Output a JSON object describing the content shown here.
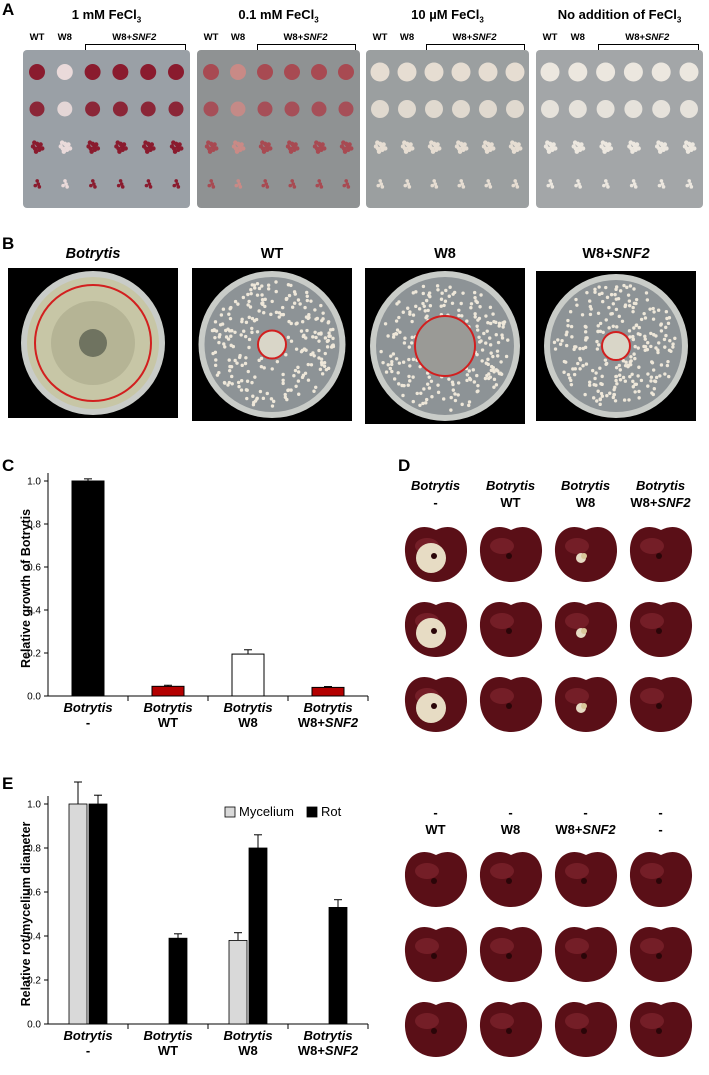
{
  "panel_letters": {
    "a": "A",
    "b": "B",
    "c": "C",
    "d": "D",
    "e": "E"
  },
  "panelA": {
    "plates": [
      {
        "title": "1 mM FeCl",
        "sub": "3",
        "wt": "WT",
        "w8": "W8",
        "w8snf2_prefix": "W8+",
        "w8snf2_gene": "SNF2",
        "bg": "#9aa0a6",
        "colony": "#8a1b2e",
        "pale": "#e9dada"
      },
      {
        "title": "0.1 mM FeCl",
        "sub": "3",
        "wt": "WT",
        "w8": "W8",
        "w8snf2_prefix": "W8+",
        "w8snf2_gene": "SNF2",
        "bg": "#8f9293",
        "colony": "#a84a52",
        "pale": "#c27a7a"
      },
      {
        "title": "10 µM FeCl",
        "sub": "3",
        "wt": "WT",
        "w8": "W8",
        "w8snf2_prefix": "W8+",
        "w8snf2_gene": "SNF2",
        "bg": "#9b9fa0",
        "colony": "#e6ddd2",
        "pale": "#e6ddd2"
      },
      {
        "title": "No addition of FeCl",
        "sub": "3",
        "wt": "WT",
        "w8": "W8",
        "w8snf2_prefix": "W8+",
        "w8snf2_gene": "SNF2",
        "bg": "#a3a6a8",
        "colony": "#ece7df",
        "pale": "#ece7df"
      }
    ]
  },
  "panelB": {
    "titles": [
      {
        "text": "Botrytis",
        "italic": true
      },
      {
        "text": "WT",
        "italic": false
      },
      {
        "text": "W8",
        "italic": false
      },
      {
        "prefix": "W8+",
        "gene": "SNF2"
      }
    ]
  },
  "panelC": {
    "ylabel": "Relative growth of Botrytis",
    "cat_line1": [
      "Botrytis",
      "Botrytis",
      "Botrytis",
      "Botrytis"
    ],
    "cat_line2": [
      "-",
      "WT",
      "W8",
      "W8+"
    ],
    "cat_line2_gene": [
      "",
      "",
      "",
      "SNF2"
    ],
    "chart_data": {
      "type": "bar",
      "categories": [
        "Botrytis -",
        "Botrytis WT",
        "Botrytis W8",
        "Botrytis W8+SNF2"
      ],
      "values": [
        1.0,
        0.045,
        0.195,
        0.04
      ],
      "errors": [
        0.01,
        0.005,
        0.02,
        0.004
      ],
      "colors": [
        "#000000",
        "#b30000",
        "#ffffff",
        "#b30000"
      ],
      "ylabel": "Relative growth of Botrytis",
      "ylim": [
        0,
        1.0
      ],
      "yticks": [
        "0.0",
        "0.2",
        "0.4",
        "0.6",
        "0.8",
        "1.0"
      ]
    }
  },
  "panelD": {
    "headers_line1": [
      "Botrytis",
      "Botrytis",
      "Botrytis",
      "Botrytis"
    ],
    "headers_line2": [
      "-",
      "WT",
      "W8",
      "W8+"
    ],
    "headers_line2_gene": [
      "",
      "",
      "",
      "SNF2"
    ]
  },
  "panelE": {
    "ylabel": "Relative rot/mycelium diameter",
    "legend": [
      "Mycelium",
      "Rot"
    ],
    "cat_line1": [
      "Botrytis",
      "Botrytis",
      "Botrytis",
      "Botrytis"
    ],
    "cat_line2": [
      "-",
      "WT",
      "W8",
      "W8+"
    ],
    "cat_line2_gene": [
      "",
      "",
      "",
      "SNF2"
    ],
    "cherry_headers_line1": [
      "-",
      "-",
      "-",
      "-"
    ],
    "cherry_headers_line2": [
      "WT",
      "W8",
      "W8+",
      "-"
    ],
    "cherry_headers_line2_gene": [
      "",
      "",
      "SNF2",
      ""
    ],
    "chart_data": {
      "type": "bar",
      "categories": [
        "Botrytis -",
        "Botrytis WT",
        "Botrytis W8",
        "Botrytis W8+SNF2"
      ],
      "series": [
        {
          "name": "Mycelium",
          "values": [
            1.0,
            null,
            0.38,
            null
          ],
          "errors": [
            0.1,
            null,
            0.035,
            null
          ],
          "color": "#d9d9d9"
        },
        {
          "name": "Rot",
          "values": [
            1.0,
            0.39,
            0.8,
            0.53
          ],
          "errors": [
            0.04,
            0.02,
            0.06,
            0.035
          ],
          "color": "#000000"
        }
      ],
      "ylabel": "Relative rot/mycelium diameter",
      "ylim": [
        0,
        1.0
      ],
      "yticks": [
        "0.0",
        "0.2",
        "0.4",
        "0.6",
        "0.8",
        "1.0"
      ]
    }
  }
}
